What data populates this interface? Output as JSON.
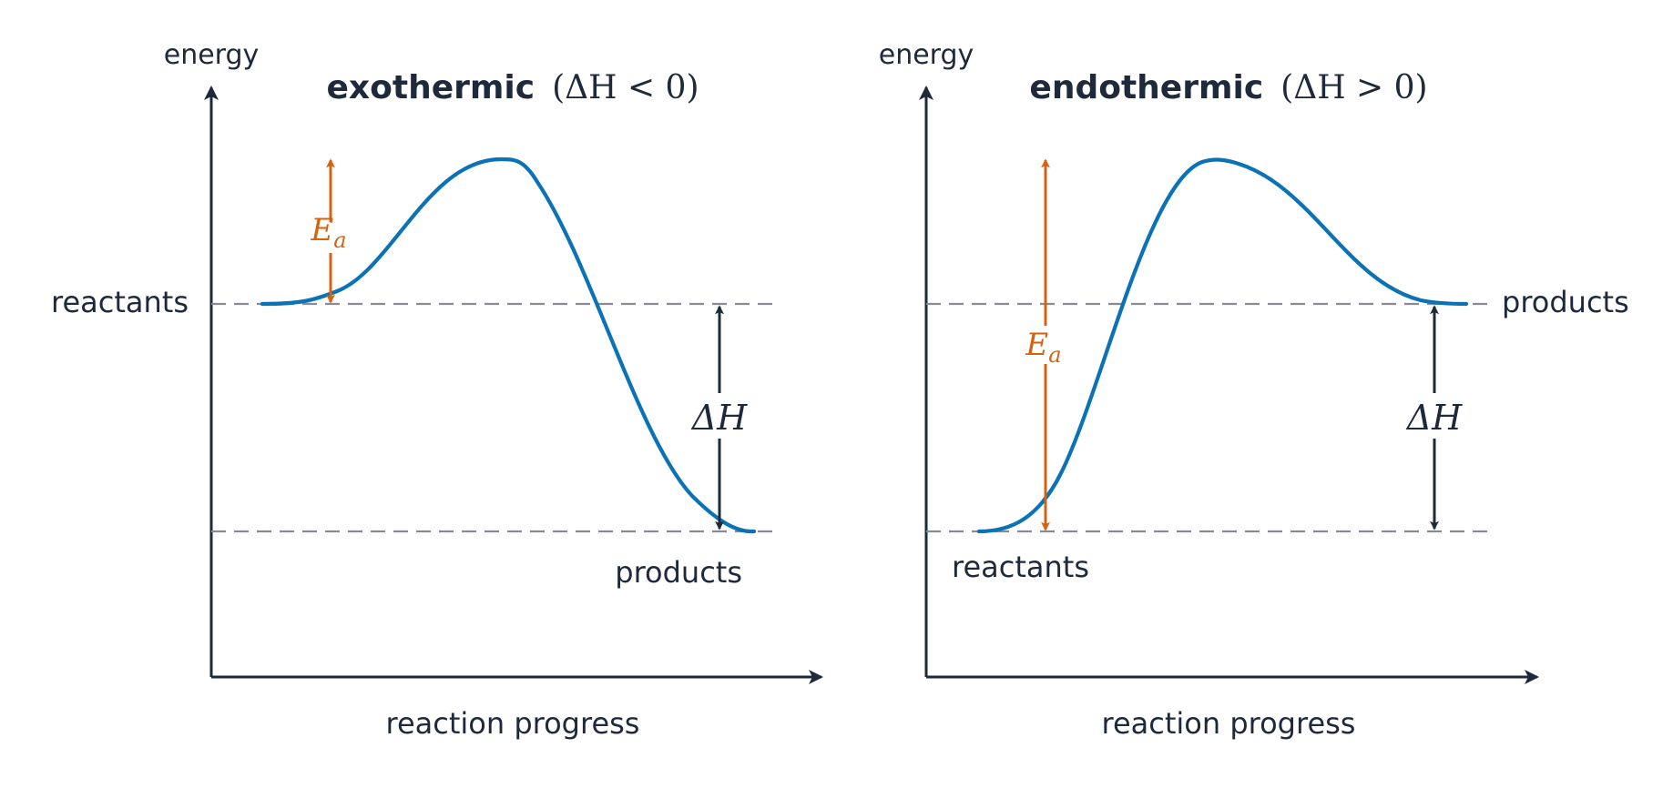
{
  "panels": [
    {
      "id": "exothermic",
      "title_word": "exothermic",
      "title_math": "(ΔH < 0)",
      "y_axis_label": "energy",
      "x_axis_label": "reaction progress",
      "reactants_label": "reactants",
      "products_label": "products",
      "activation_label": "E",
      "activation_sub": "a",
      "enthalpy_label": "ΔH",
      "levels": {
        "reactants": 0.0,
        "products": -1.0,
        "peak": 0.64
      }
    },
    {
      "id": "endothermic",
      "title_word": "endothermic",
      "title_math": "(ΔH > 0)",
      "y_axis_label": "energy",
      "x_axis_label": "reaction progress",
      "reactants_label": "reactants",
      "products_label": "products",
      "activation_label": "E",
      "activation_sub": "a",
      "enthalpy_label": "ΔH",
      "levels": {
        "reactants": -1.0,
        "products": 0.0,
        "peak": 0.64
      }
    }
  ],
  "colors": {
    "axis": "#1e293b",
    "curve": "#0a72b5",
    "activation_arrow": "#d5620f",
    "enthalpy_arrow": "#1e293b",
    "guide_line": "#8a8a94"
  }
}
